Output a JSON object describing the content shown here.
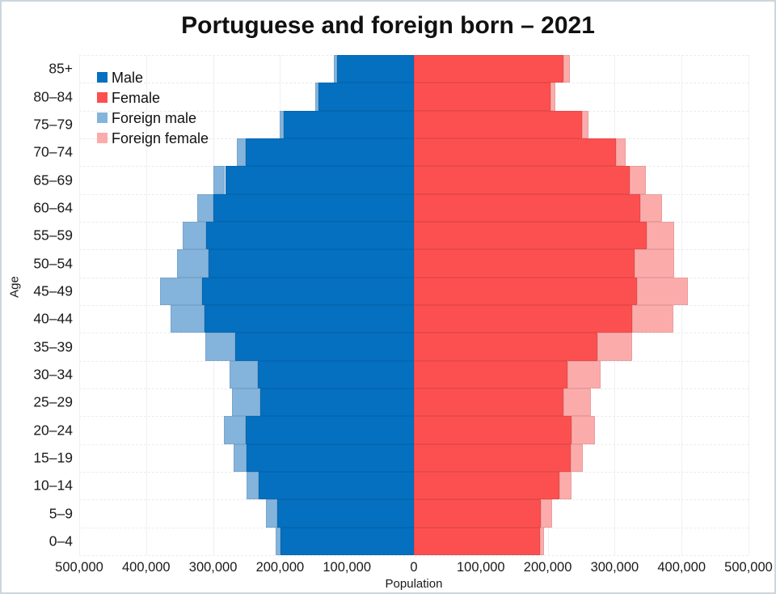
{
  "title": "Portuguese and foreign born – 2021",
  "axes": {
    "y_label": "Age",
    "x_label": "Population"
  },
  "legend": [
    {
      "label": "Male",
      "color": "#0570c0"
    },
    {
      "label": "Female",
      "color": "#fc5050"
    },
    {
      "label": "Foreign male",
      "color": "#84b4dc"
    },
    {
      "label": "Foreign female",
      "color": "#fcabab"
    }
  ],
  "chart_data": {
    "type": "bar",
    "subtype": "population-pyramid",
    "title": "Portuguese and foreign born – 2021",
    "xlabel": "Population",
    "ylabel": "Age",
    "grid": true,
    "legend_position": "top-left",
    "xlim": [
      -500000,
      500000
    ],
    "x_tick_values": [
      -500000,
      -400000,
      -300000,
      -200000,
      -100000,
      0,
      100000,
      200000,
      300000,
      400000,
      500000
    ],
    "x_tick_labels": [
      "500,000",
      "400,000",
      "300,000",
      "200,000",
      "100,000",
      "0",
      "100,000",
      "200,000",
      "300,000",
      "400,000",
      "500,000"
    ],
    "category_order": "top-to-bottom",
    "categories": [
      "85+",
      "80–84",
      "75–79",
      "70–74",
      "65–69",
      "60–64",
      "55–59",
      "50–54",
      "45–49",
      "40–44",
      "35–39",
      "30–34",
      "25–29",
      "20–24",
      "15–19",
      "10–14",
      "5–9",
      "0–4"
    ],
    "series": [
      {
        "name": "Male",
        "side": "left",
        "color": "#0570c0",
        "values": [
          115000,
          142000,
          195000,
          251000,
          282000,
          299000,
          310000,
          307000,
          316000,
          313000,
          267000,
          233000,
          230000,
          251000,
          250000,
          232000,
          204000,
          199000
        ]
      },
      {
        "name": "Female",
        "side": "right",
        "color": "#fc5050",
        "values": [
          224000,
          204000,
          251000,
          302000,
          322000,
          338000,
          348000,
          330000,
          333000,
          326000,
          274000,
          229000,
          223000,
          236000,
          234000,
          217000,
          190000,
          188000
        ]
      },
      {
        "name": "Foreign male",
        "side": "left",
        "stacked_on": "Male",
        "color": "#84b4dc",
        "values": [
          5000,
          5000,
          6000,
          13000,
          18000,
          25000,
          36000,
          47000,
          63000,
          50000,
          45000,
          42000,
          42000,
          33000,
          19000,
          18000,
          17000,
          8000
        ]
      },
      {
        "name": "Foreign female",
        "side": "right",
        "stacked_on": "Female",
        "color": "#fcabab",
        "values": [
          9000,
          7000,
          10000,
          15000,
          25000,
          33000,
          41000,
          59000,
          76000,
          62000,
          52000,
          50000,
          41000,
          34000,
          19000,
          18000,
          17000,
          7000
        ]
      }
    ]
  }
}
